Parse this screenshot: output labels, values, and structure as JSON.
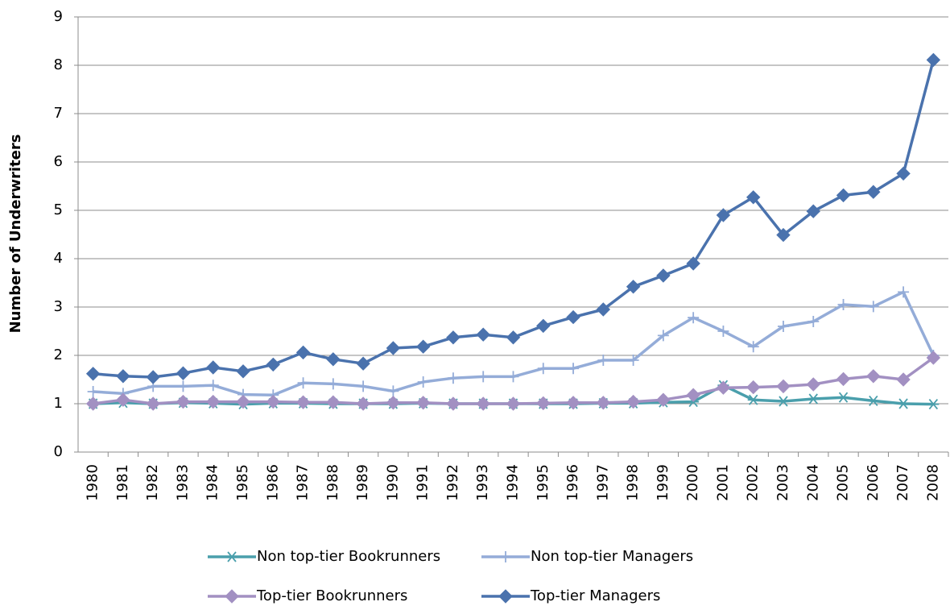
{
  "chart_data": {
    "type": "line",
    "y_label": "Number of Underwriters",
    "categories": [
      "1980",
      "1981",
      "1982",
      "1983",
      "1984",
      "1985",
      "1986",
      "1987",
      "1988",
      "1989",
      "1990",
      "1991",
      "1992",
      "1993",
      "1994",
      "1995",
      "1996",
      "1997",
      "1998",
      "1999",
      "2000",
      "2001",
      "2002",
      "2003",
      "2004",
      "2005",
      "2006",
      "2007",
      "2008"
    ],
    "ylim": [
      0,
      9
    ],
    "yticks": [
      0,
      1,
      2,
      3,
      4,
      5,
      6,
      7,
      8,
      9
    ],
    "grid": true,
    "series": [
      {
        "name": "Non top-tier Bookrunners",
        "color": "#4a9fac",
        "marker": "star",
        "values": [
          1.0,
          1.02,
          1.0,
          1.02,
          1.01,
          0.99,
          1.01,
          1.01,
          1.0,
          1.0,
          1.0,
          1.01,
          1.0,
          1.0,
          1.0,
          1.0,
          1.0,
          1.01,
          1.01,
          1.03,
          1.04,
          1.38,
          1.08,
          1.05,
          1.1,
          1.13,
          1.06,
          1.0,
          0.99
        ]
      },
      {
        "name": "Non top-tier Managers",
        "color": "#94acd8",
        "marker": "plus",
        "values": [
          1.25,
          1.21,
          1.36,
          1.36,
          1.38,
          1.19,
          1.18,
          1.43,
          1.41,
          1.36,
          1.26,
          1.45,
          1.53,
          1.56,
          1.56,
          1.73,
          1.73,
          1.9,
          1.9,
          2.41,
          2.78,
          2.5,
          2.18,
          2.6,
          2.7,
          3.05,
          3.01,
          3.31,
          2.0
        ]
      },
      {
        "name": "Top-tier Bookrunners",
        "color": "#a290c2",
        "marker": "diamond",
        "values": [
          1.0,
          1.08,
          1.0,
          1.04,
          1.04,
          1.04,
          1.04,
          1.03,
          1.03,
          1.0,
          1.02,
          1.02,
          1.0,
          1.0,
          1.0,
          1.01,
          1.02,
          1.02,
          1.04,
          1.08,
          1.18,
          1.33,
          1.34,
          1.36,
          1.4,
          1.51,
          1.57,
          1.5,
          1.95
        ]
      },
      {
        "name": "Top-tier Managers",
        "color": "#4a72ad",
        "marker": "diamond",
        "values": [
          1.62,
          1.57,
          1.55,
          1.63,
          1.75,
          1.67,
          1.81,
          2.06,
          1.92,
          1.83,
          2.15,
          2.18,
          2.37,
          2.43,
          2.37,
          2.61,
          2.79,
          2.95,
          3.42,
          3.65,
          3.9,
          4.9,
          5.27,
          4.49,
          4.98,
          5.31,
          5.38,
          5.76,
          8.11
        ]
      }
    ]
  }
}
